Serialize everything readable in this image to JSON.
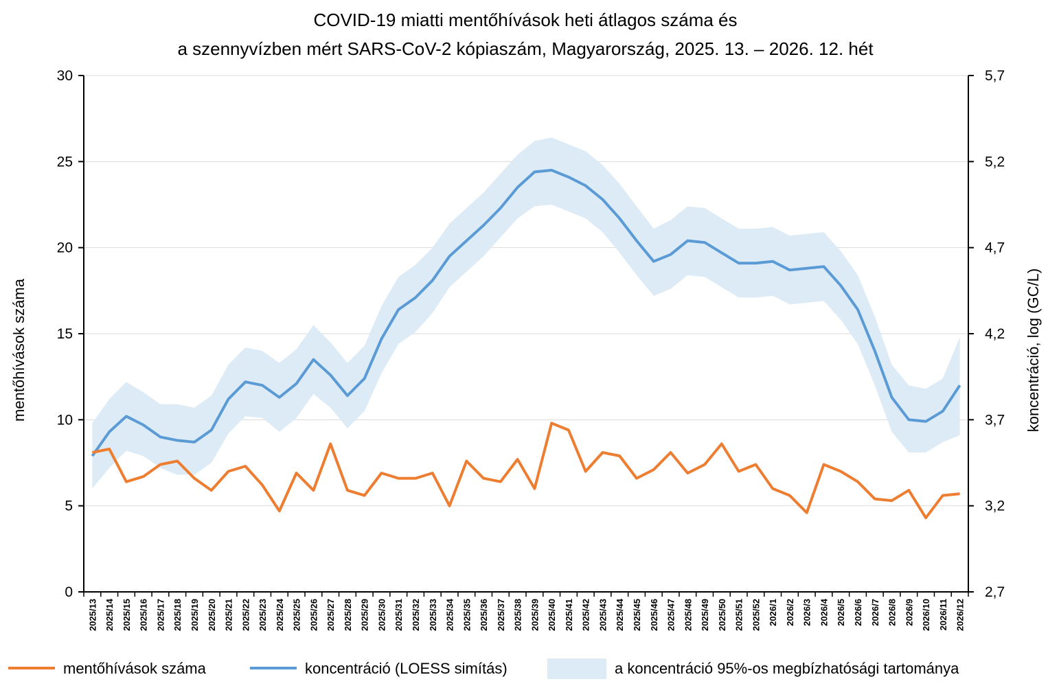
{
  "chart_data": {
    "type": "line",
    "title_lines": [
      "COVID-19 miatti mentőhívások heti átlagos száma és",
      "a szennyvízben mért SARS-CoV-2 kópiaszám, Magyarország, 2025. 13. – 2026. 12. hét"
    ],
    "ylabel_left": "mentőhívások száma",
    "ylabel_right": "koncentráció, log (GC/L)",
    "ylim_left": [
      0,
      30
    ],
    "ylim_right": [
      2.7,
      5.7
    ],
    "yticks_left": [
      "0",
      "5",
      "10",
      "15",
      "20",
      "25",
      "30"
    ],
    "yticks_right": [
      "2,7",
      "3,2",
      "3,7",
      "4,2",
      "4,7",
      "5,2",
      "5,7"
    ],
    "grid": "horizontal",
    "legend_position": "bottom",
    "categories": [
      "2025/13",
      "2025/14",
      "2025/15",
      "2025/16",
      "2025/17",
      "2025/18",
      "2025/19",
      "2025/20",
      "2025/21",
      "2025/22",
      "2025/23",
      "2025/24",
      "2025/25",
      "2025/26",
      "2025/27",
      "2025/28",
      "2025/29",
      "2025/30",
      "2025/31",
      "2025/32",
      "2025/33",
      "2025/34",
      "2025/35",
      "2025/36",
      "2025/37",
      "2025/38",
      "2025/39",
      "2025/40",
      "2025/41",
      "2025/42",
      "2025/43",
      "2025/44",
      "2025/45",
      "2025/46",
      "2025/47",
      "2025/48",
      "2025/49",
      "2025/50",
      "2025/51",
      "2025/52",
      "2026/1",
      "2026/2",
      "2026/3",
      "2026/4",
      "2026/5",
      "2026/6",
      "2026/7",
      "2026/8",
      "2026/9",
      "2026/10",
      "2026/11",
      "2026/12"
    ],
    "series": [
      {
        "name": "mentőhívások száma",
        "axis": "left",
        "color": "#ED7D31",
        "values": [
          8.1,
          8.3,
          6.4,
          6.7,
          7.4,
          7.6,
          6.6,
          5.9,
          7.0,
          7.3,
          6.2,
          4.7,
          6.9,
          5.9,
          8.6,
          5.9,
          5.6,
          6.9,
          6.6,
          6.6,
          6.9,
          5.0,
          7.6,
          6.6,
          6.4,
          7.7,
          6.0,
          9.8,
          9.4,
          7.0,
          8.1,
          7.9,
          6.6,
          7.1,
          8.1,
          6.9,
          7.4,
          8.6,
          7.0,
          7.4,
          6.0,
          5.6,
          4.6,
          7.4,
          7.0,
          6.4,
          5.4,
          5.3,
          5.9,
          4.3,
          5.6,
          5.7
        ]
      },
      {
        "name": "koncentráció (LOESS simítás)",
        "axis": "right",
        "color": "#5B9BD5",
        "values": [
          3.49,
          3.63,
          3.72,
          3.67,
          3.6,
          3.58,
          3.57,
          3.64,
          3.82,
          3.92,
          3.9,
          3.83,
          3.91,
          4.05,
          3.96,
          3.84,
          3.94,
          4.17,
          4.34,
          4.41,
          4.51,
          4.65,
          4.74,
          4.83,
          4.93,
          5.05,
          5.14,
          5.15,
          5.11,
          5.06,
          4.98,
          4.87,
          4.74,
          4.62,
          4.66,
          4.74,
          4.73,
          4.67,
          4.61,
          4.61,
          4.62,
          4.57,
          4.58,
          4.59,
          4.48,
          4.34,
          4.1,
          3.83,
          3.7,
          3.69,
          3.75,
          3.9
        ]
      },
      {
        "name": "a koncentráció 95%-os megbízhatósági tartománya",
        "axis": "right",
        "type": "band",
        "color": "#DDEBF7",
        "lower": [
          3.3,
          3.42,
          3.52,
          3.49,
          3.42,
          3.38,
          3.38,
          3.45,
          3.62,
          3.72,
          3.71,
          3.63,
          3.71,
          3.85,
          3.77,
          3.65,
          3.75,
          3.97,
          4.14,
          4.21,
          4.32,
          4.47,
          4.56,
          4.65,
          4.76,
          4.87,
          4.94,
          4.95,
          4.91,
          4.87,
          4.79,
          4.67,
          4.54,
          4.42,
          4.46,
          4.54,
          4.53,
          4.47,
          4.41,
          4.41,
          4.42,
          4.37,
          4.38,
          4.39,
          4.28,
          4.14,
          3.9,
          3.63,
          3.51,
          3.51,
          3.57,
          3.61
        ],
        "upper": [
          3.68,
          3.82,
          3.92,
          3.86,
          3.79,
          3.79,
          3.77,
          3.84,
          4.02,
          4.12,
          4.1,
          4.03,
          4.11,
          4.25,
          4.15,
          4.03,
          4.13,
          4.36,
          4.53,
          4.6,
          4.7,
          4.84,
          4.93,
          5.02,
          5.13,
          5.24,
          5.32,
          5.34,
          5.3,
          5.26,
          5.18,
          5.07,
          4.94,
          4.81,
          4.86,
          4.94,
          4.93,
          4.87,
          4.81,
          4.81,
          4.82,
          4.77,
          4.78,
          4.79,
          4.68,
          4.54,
          4.3,
          4.02,
          3.9,
          3.88,
          3.94,
          4.18
        ]
      }
    ]
  }
}
